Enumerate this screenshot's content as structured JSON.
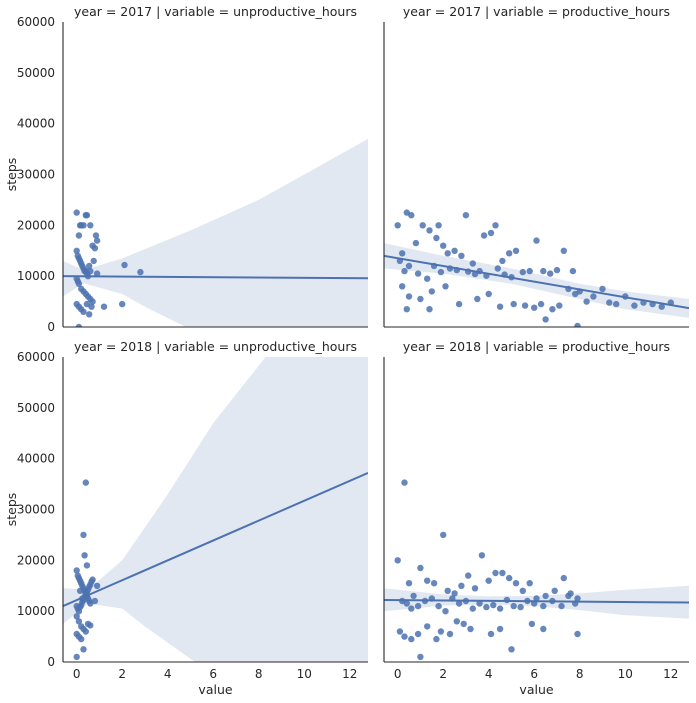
{
  "chart_data": {
    "type": "scatter",
    "xlabel": "value",
    "ylabel": "steps",
    "xlim": [
      -0.6,
      12.8
    ],
    "ylim": [
      0,
      60000
    ],
    "xticks": [
      0,
      2,
      4,
      6,
      8,
      10,
      12
    ],
    "yticks": [
      0,
      10000,
      20000,
      30000,
      40000,
      50000,
      60000
    ],
    "colors": {
      "points": "#4c72b0",
      "band": "#4c72b0"
    },
    "facets": [
      {
        "title": "year = 2017 | variable = unproductive_hours",
        "regression": {
          "x0": -0.6,
          "y0": 10000,
          "x1": 12.8,
          "y1": 9600
        },
        "ci_upper": [
          [
            -0.6,
            13000
          ],
          [
            0.3,
            11200
          ],
          [
            2,
            13500
          ],
          [
            5,
            19000
          ],
          [
            8,
            25000
          ],
          [
            12.8,
            37000
          ]
        ],
        "ci_lower": [
          [
            -0.6,
            6000
          ],
          [
            0.3,
            8600
          ],
          [
            2,
            6500
          ],
          [
            3,
            4000
          ],
          [
            4.8,
            0
          ],
          [
            12.8,
            0
          ]
        ],
        "points": [
          [
            0,
            22500
          ],
          [
            0.1,
            18000
          ],
          [
            0.15,
            20000
          ],
          [
            0.2,
            20000
          ],
          [
            0.3,
            20000
          ],
          [
            0.4,
            22000
          ],
          [
            0.45,
            22000
          ],
          [
            0.6,
            20000
          ],
          [
            0.7,
            16000
          ],
          [
            0.8,
            15500
          ],
          [
            0.85,
            18000
          ],
          [
            0.9,
            17000
          ],
          [
            0.0,
            15000
          ],
          [
            0.05,
            14000
          ],
          [
            0.1,
            13500
          ],
          [
            0.15,
            13000
          ],
          [
            0.2,
            12500
          ],
          [
            0.25,
            12000
          ],
          [
            0.3,
            11500
          ],
          [
            0.35,
            11000
          ],
          [
            0.4,
            11000
          ],
          [
            0.45,
            10500
          ],
          [
            0.5,
            10000
          ],
          [
            0.55,
            12000
          ],
          [
            0.6,
            11000
          ],
          [
            0.0,
            9500
          ],
          [
            0.05,
            9000
          ],
          [
            0.1,
            8500
          ],
          [
            0.2,
            7500
          ],
          [
            0.3,
            7000
          ],
          [
            0.4,
            6500
          ],
          [
            0.5,
            6000
          ],
          [
            0.6,
            5500
          ],
          [
            0.7,
            5000
          ],
          [
            0.0,
            4500
          ],
          [
            0.1,
            4000
          ],
          [
            0.2,
            3500
          ],
          [
            0.3,
            3000
          ],
          [
            0.45,
            4500
          ],
          [
            0.55,
            2500
          ],
          [
            0.65,
            4000
          ],
          [
            0.75,
            13000
          ],
          [
            0.9,
            10500
          ],
          [
            1.2,
            4000
          ],
          [
            2.0,
            4500
          ],
          [
            2.1,
            12200
          ],
          [
            2.8,
            10800
          ],
          [
            0.1,
            0
          ]
        ]
      },
      {
        "title": "year = 2017 | variable = productive_hours",
        "regression": {
          "x0": -0.6,
          "y0": 14000,
          "x1": 12.8,
          "y1": 3700
        },
        "ci_upper": [
          [
            -0.6,
            16500
          ],
          [
            2,
            14000
          ],
          [
            5,
            11500
          ],
          [
            8,
            8500
          ],
          [
            10,
            7000
          ],
          [
            12.8,
            5500
          ]
        ],
        "ci_lower": [
          [
            -0.6,
            11500
          ],
          [
            2,
            10500
          ],
          [
            5,
            8500
          ],
          [
            8,
            5500
          ],
          [
            10,
            3500
          ],
          [
            12.8,
            1800
          ]
        ],
        "points": [
          [
            0,
            20000
          ],
          [
            0.2,
            14500
          ],
          [
            0.4,
            22500
          ],
          [
            0.6,
            22000
          ],
          [
            0.8,
            16500
          ],
          [
            1.1,
            20000
          ],
          [
            1.4,
            19000
          ],
          [
            1.7,
            17500
          ],
          [
            1.8,
            20000
          ],
          [
            2.0,
            16000
          ],
          [
            2.2,
            14500
          ],
          [
            2.5,
            15000
          ],
          [
            2.8,
            14000
          ],
          [
            3.0,
            22000
          ],
          [
            3.3,
            12500
          ],
          [
            3.6,
            11000
          ],
          [
            3.8,
            18000
          ],
          [
            4.1,
            18500
          ],
          [
            4.3,
            20000
          ],
          [
            4.6,
            13000
          ],
          [
            4.9,
            14500
          ],
          [
            5.2,
            15000
          ],
          [
            5.5,
            10800
          ],
          [
            5.8,
            11000
          ],
          [
            6.1,
            17000
          ],
          [
            6.4,
            11000
          ],
          [
            6.7,
            10500
          ],
          [
            7.0,
            11200
          ],
          [
            7.3,
            15000
          ],
          [
            7.7,
            11000
          ],
          [
            0.1,
            13000
          ],
          [
            0.3,
            11000
          ],
          [
            0.5,
            12000
          ],
          [
            0.9,
            10500
          ],
          [
            1.3,
            9500
          ],
          [
            1.6,
            12000
          ],
          [
            1.9,
            10800
          ],
          [
            2.3,
            11500
          ],
          [
            2.6,
            11200
          ],
          [
            3.1,
            10900
          ],
          [
            3.4,
            10400
          ],
          [
            3.9,
            10100
          ],
          [
            4.4,
            11500
          ],
          [
            4.7,
            10300
          ],
          [
            5.0,
            9800
          ],
          [
            0.2,
            8000
          ],
          [
            0.5,
            6000
          ],
          [
            1.0,
            5500
          ],
          [
            1.5,
            7000
          ],
          [
            2.1,
            8000
          ],
          [
            2.7,
            4500
          ],
          [
            3.5,
            5500
          ],
          [
            4.0,
            6500
          ],
          [
            4.5,
            4000
          ],
          [
            5.1,
            4500
          ],
          [
            5.6,
            4200
          ],
          [
            6.0,
            3800
          ],
          [
            6.3,
            4500
          ],
          [
            6.8,
            3500
          ],
          [
            7.1,
            4200
          ],
          [
            7.5,
            7500
          ],
          [
            7.8,
            6500
          ],
          [
            8.0,
            7000
          ],
          [
            8.3,
            5000
          ],
          [
            8.6,
            6000
          ],
          [
            9.0,
            7500
          ],
          [
            9.3,
            4800
          ],
          [
            9.6,
            4500
          ],
          [
            10.0,
            6000
          ],
          [
            10.4,
            4200
          ],
          [
            10.8,
            4800
          ],
          [
            11.2,
            4500
          ],
          [
            11.6,
            4000
          ],
          [
            12.0,
            4800
          ],
          [
            0.4,
            3500
          ],
          [
            1.4,
            3500
          ],
          [
            6.5,
            1500
          ],
          [
            7.9,
            200
          ]
        ]
      },
      {
        "title": "year = 2018 | variable = unproductive_hours",
        "regression": {
          "x0": -0.6,
          "y0": 11000,
          "x1": 12.8,
          "y1": 37200
        },
        "ci_upper": [
          [
            -0.6,
            14500
          ],
          [
            0.5,
            14200
          ],
          [
            2,
            20000
          ],
          [
            4,
            33000
          ],
          [
            6,
            47000
          ],
          [
            8.3,
            60000
          ],
          [
            12.8,
            60000
          ]
        ],
        "ci_lower": [
          [
            -0.6,
            7500
          ],
          [
            0.5,
            11500
          ],
          [
            2,
            10500
          ],
          [
            3,
            7000
          ],
          [
            5.2,
            0
          ],
          [
            12.8,
            0
          ]
        ],
        "points": [
          [
            0,
            18000
          ],
          [
            0.05,
            17000
          ],
          [
            0.1,
            16500
          ],
          [
            0.15,
            16000
          ],
          [
            0.2,
            15500
          ],
          [
            0.25,
            15000
          ],
          [
            0.3,
            14500
          ],
          [
            0.35,
            14000
          ],
          [
            0.4,
            13500
          ],
          [
            0.45,
            13000
          ],
          [
            0.5,
            12500
          ],
          [
            0.55,
            12000
          ],
          [
            0.6,
            11500
          ],
          [
            0.0,
            11000
          ],
          [
            0.05,
            10500
          ],
          [
            0.1,
            10000
          ],
          [
            0.15,
            10800
          ],
          [
            0.2,
            11200
          ],
          [
            0.25,
            11800
          ],
          [
            0.3,
            12200
          ],
          [
            0.35,
            12800
          ],
          [
            0.4,
            13200
          ],
          [
            0.45,
            13800
          ],
          [
            0.5,
            14200
          ],
          [
            0.55,
            14800
          ],
          [
            0.6,
            15200
          ],
          [
            0.65,
            15800
          ],
          [
            0.7,
            16200
          ],
          [
            0.0,
            9000
          ],
          [
            0.1,
            8000
          ],
          [
            0.2,
            7000
          ],
          [
            0.3,
            6500
          ],
          [
            0.4,
            6000
          ],
          [
            0.5,
            7500
          ],
          [
            0.6,
            7200
          ],
          [
            0.0,
            5500
          ],
          [
            0.1,
            5000
          ],
          [
            0.2,
            4500
          ],
          [
            0.3,
            25000
          ],
          [
            0.4,
            35300
          ],
          [
            0.35,
            21000
          ],
          [
            0.45,
            19000
          ],
          [
            0.9,
            15000
          ],
          [
            0.8,
            12000
          ],
          [
            0.0,
            1000
          ],
          [
            0.3,
            2500
          ],
          [
            0.15,
            14000
          ],
          [
            0.25,
            12500
          ]
        ]
      },
      {
        "title": "year = 2018 | variable = productive_hours",
        "regression": {
          "x0": -0.6,
          "y0": 12200,
          "x1": 12.8,
          "y1": 11700
        },
        "ci_upper": [
          [
            -0.6,
            14500
          ],
          [
            2,
            13300
          ],
          [
            4,
            12900
          ],
          [
            6,
            13000
          ],
          [
            8,
            13500
          ],
          [
            10,
            14200
          ],
          [
            12.8,
            15000
          ]
        ],
        "ci_lower": [
          [
            -0.6,
            10000
          ],
          [
            2,
            11100
          ],
          [
            4,
            11300
          ],
          [
            6,
            11000
          ],
          [
            8,
            10200
          ],
          [
            10,
            9200
          ],
          [
            12.8,
            8500
          ]
        ],
        "points": [
          [
            0,
            20000
          ],
          [
            0.3,
            35300
          ],
          [
            0.5,
            15500
          ],
          [
            0.7,
            13000
          ],
          [
            1.0,
            18500
          ],
          [
            1.3,
            16000
          ],
          [
            1.6,
            15500
          ],
          [
            2.0,
            25000
          ],
          [
            2.2,
            14000
          ],
          [
            2.5,
            13500
          ],
          [
            2.8,
            15000
          ],
          [
            3.1,
            17000
          ],
          [
            3.4,
            14500
          ],
          [
            3.7,
            21000
          ],
          [
            4.0,
            16000
          ],
          [
            4.3,
            17500
          ],
          [
            4.6,
            17500
          ],
          [
            4.9,
            16500
          ],
          [
            5.2,
            15500
          ],
          [
            5.5,
            14000
          ],
          [
            5.8,
            15500
          ],
          [
            6.1,
            12500
          ],
          [
            6.5,
            13000
          ],
          [
            6.9,
            14000
          ],
          [
            7.3,
            16500
          ],
          [
            7.6,
            13500
          ],
          [
            7.9,
            12500
          ],
          [
            0.2,
            12000
          ],
          [
            0.4,
            11500
          ],
          [
            0.6,
            10500
          ],
          [
            0.9,
            11000
          ],
          [
            1.2,
            12000
          ],
          [
            1.5,
            12500
          ],
          [
            1.8,
            11000
          ],
          [
            2.1,
            10000
          ],
          [
            2.4,
            12500
          ],
          [
            2.7,
            11500
          ],
          [
            3.0,
            12000
          ],
          [
            3.3,
            10500
          ],
          [
            3.6,
            11500
          ],
          [
            3.9,
            10800
          ],
          [
            4.2,
            11200
          ],
          [
            4.5,
            10500
          ],
          [
            4.8,
            12200
          ],
          [
            5.1,
            11000
          ],
          [
            5.4,
            10800
          ],
          [
            5.7,
            12000
          ],
          [
            6.0,
            11500
          ],
          [
            6.4,
            11000
          ],
          [
            6.8,
            12000
          ],
          [
            7.2,
            11000
          ],
          [
            7.5,
            13000
          ],
          [
            7.8,
            11500
          ],
          [
            0.1,
            6000
          ],
          [
            0.3,
            5000
          ],
          [
            0.6,
            4500
          ],
          [
            0.9,
            5500
          ],
          [
            1.3,
            7000
          ],
          [
            1.9,
            6000
          ],
          [
            2.3,
            5500
          ],
          [
            2.6,
            8000
          ],
          [
            2.9,
            7500
          ],
          [
            3.2,
            6500
          ],
          [
            4.1,
            5500
          ],
          [
            4.5,
            6500
          ],
          [
            5.0,
            2500
          ],
          [
            5.9,
            7500
          ],
          [
            6.4,
            6500
          ],
          [
            7.9,
            5500
          ],
          [
            1.0,
            1000
          ],
          [
            1.7,
            4500
          ]
        ]
      }
    ]
  }
}
